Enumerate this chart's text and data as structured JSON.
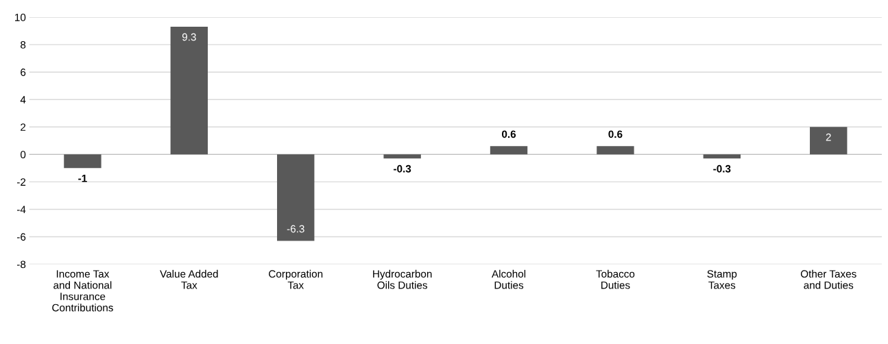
{
  "chart_data": {
    "type": "bar",
    "categories": [
      "Income Tax\nand National\nInsurance\nContributions",
      "Value Added\nTax",
      "Corporation\nTax",
      "Hydrocarbon\nOils Duties",
      "Alcohol\nDuties",
      "Tobacco\nDuties",
      "Stamp\nTaxes",
      "Other Taxes\nand Duties"
    ],
    "values": [
      -1,
      9.3,
      -6.3,
      -0.3,
      0.6,
      0.6,
      -0.3,
      2
    ],
    "color": "#595959",
    "ylim": [
      -8,
      10
    ],
    "yticks": [
      -8,
      -6,
      -4,
      -2,
      0,
      2,
      4,
      6,
      8,
      10
    ],
    "grid": "y",
    "data_labels": true
  }
}
